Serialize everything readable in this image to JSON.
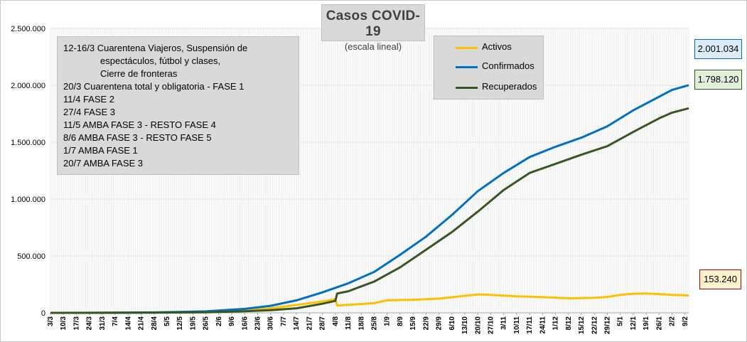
{
  "title": "Casos COVID-19",
  "subtitle": "(escala lineal)",
  "notes": [
    {
      "text": "12-16/3  Cuarentena Viajeros, Suspensión de",
      "indent": false
    },
    {
      "text": "espectáculos, fútbol y clases,",
      "indent": true
    },
    {
      "text": "Cierre de fronteras",
      "indent": true
    },
    {
      "text": "20/3 Cuarentena total y obligatoria - FASE 1",
      "indent": false
    },
    {
      "text": "11/4 FASE 2",
      "indent": false
    },
    {
      "text": "27/4 FASE 3",
      "indent": false
    },
    {
      "text": "11/5 AMBA FASE 3 - RESTO FASE 4",
      "indent": false
    },
    {
      "text": "8/6 AMBA FASE 3 - RESTO FASE 5",
      "indent": false
    },
    {
      "text": "1/7 AMBA FASE 1",
      "indent": false
    },
    {
      "text": "20/7 AMBA FASE 3",
      "indent": false
    }
  ],
  "end_values": {
    "confirmados": "2.001.034",
    "recuperados": "1.798.120",
    "activos": "153.240"
  },
  "colors": {
    "activos": "#ffc000",
    "confirmados": "#0070c0",
    "recuperados": "#375623",
    "grid": "#d9d9d9",
    "box_bg": "#d9d9d9",
    "confirmados_box_bg": "#ddebf7",
    "recuperados_box_bg": "#e2efda",
    "activos_box_bg": "#fff2cc",
    "activos_box_border": "#c00000"
  },
  "chart_data": {
    "type": "line",
    "title": "Casos COVID-19",
    "subtitle": "(escala lineal)",
    "ylim": [
      0,
      2500000
    ],
    "yticks": [
      0,
      500000,
      1000000,
      1500000,
      2000000,
      2500000
    ],
    "ytick_labels": [
      "0",
      "500.000",
      "1.000.000",
      "1.500.000",
      "2.000.000",
      "2.500.000"
    ],
    "grid": true,
    "legend_position": "top-right",
    "x_tick_labels": [
      "3/3",
      "10/3",
      "17/3",
      "24/3",
      "31/3",
      "7/4",
      "14/4",
      "21/4",
      "28/4",
      "5/5",
      "12/5",
      "19/5",
      "26/5",
      "2/6",
      "9/6",
      "16/6",
      "23/6",
      "30/6",
      "7/7",
      "14/7",
      "21/7",
      "28/7",
      "4/8",
      "11/8",
      "18/8",
      "25/8",
      "1/9",
      "8/9",
      "15/9",
      "22/9",
      "29/9",
      "6/10",
      "13/10",
      "20/10",
      "27/10",
      "3/11",
      "10/11",
      "17/11",
      "24/11",
      "1/12",
      "8/12",
      "15/12",
      "22/12",
      "29/12",
      "5/1",
      "12/1",
      "19/1",
      "26/1",
      "2/2",
      "9/2"
    ],
    "series": [
      {
        "name": "Activos",
        "x": [
          "3/3",
          "31/3",
          "28/4",
          "26/5",
          "16/6",
          "30/6",
          "14/7",
          "28/7",
          "4/8",
          "5/8",
          "11/8",
          "25/8",
          "1/9",
          "15/9",
          "29/9",
          "13/10",
          "20/10",
          "27/10",
          "10/11",
          "24/11",
          "8/12",
          "22/12",
          "29/12",
          "5/1",
          "12/1",
          "19/1",
          "26/1",
          "2/2",
          "9/2",
          "11/2"
        ],
        "values": [
          0,
          1000,
          2500,
          8000,
          20000,
          40000,
          70000,
          100000,
          120000,
          65000,
          70000,
          85000,
          110000,
          115000,
          125000,
          150000,
          162000,
          158000,
          145000,
          138000,
          128000,
          132000,
          140000,
          158000,
          168000,
          170000,
          165000,
          158000,
          155000,
          153240
        ]
      },
      {
        "name": "Confirmados",
        "x": [
          "3/3",
          "31/3",
          "28/4",
          "26/5",
          "16/6",
          "30/6",
          "14/7",
          "28/7",
          "11/8",
          "25/8",
          "8/9",
          "22/9",
          "6/10",
          "20/10",
          "3/11",
          "17/11",
          "1/12",
          "15/12",
          "29/12",
          "12/1",
          "26/1",
          "2/2",
          "11/2"
        ],
        "values": [
          0,
          1000,
          4000,
          13000,
          35000,
          62000,
          110000,
          180000,
          260000,
          360000,
          510000,
          670000,
          860000,
          1070000,
          1230000,
          1370000,
          1460000,
          1540000,
          1640000,
          1780000,
          1900000,
          1960000,
          2001034
        ]
      },
      {
        "name": "Recuperados",
        "x": [
          "3/3",
          "31/3",
          "28/4",
          "26/5",
          "16/6",
          "30/6",
          "14/7",
          "28/7",
          "4/8",
          "5/8",
          "11/8",
          "25/8",
          "8/9",
          "22/9",
          "6/10",
          "20/10",
          "3/11",
          "17/11",
          "1/12",
          "15/12",
          "29/12",
          "12/1",
          "26/1",
          "2/2",
          "11/2"
        ],
        "values": [
          0,
          0,
          1500,
          5000,
          14000,
          23000,
          40000,
          80000,
          105000,
          170000,
          190000,
          275000,
          400000,
          555000,
          710000,
          890000,
          1080000,
          1230000,
          1310000,
          1390000,
          1465000,
          1590000,
          1710000,
          1760000,
          1798120
        ]
      }
    ]
  }
}
